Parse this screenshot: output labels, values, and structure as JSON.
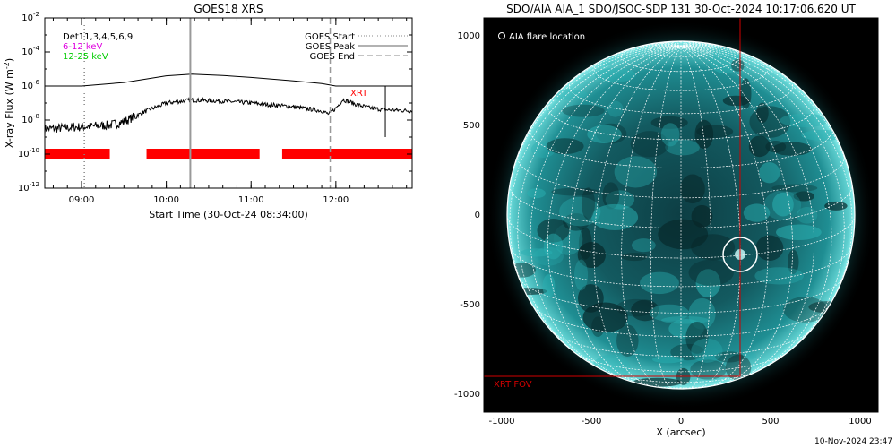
{
  "footer_timestamp": "10-Nov-2024 23:47",
  "chart_data": [
    {
      "type": "line",
      "title": "GOES18 XRS",
      "ylabel": "X-ray Flux (W m^-2)",
      "xlabel": "Start Time (30-Oct-24 08:34:00)",
      "yscale": "log",
      "ylim": [
        1e-12,
        0.01
      ],
      "xlim": [
        "08:34",
        "12:54"
      ],
      "yticks": [
        {
          "exp": -12,
          "label": "10",
          "sup": "-12"
        },
        {
          "exp": -10,
          "label": "10",
          "sup": "-10"
        },
        {
          "exp": -8,
          "label": "10",
          "sup": "-8"
        },
        {
          "exp": -6,
          "label": "10",
          "sup": "-6"
        },
        {
          "exp": -4,
          "label": "10",
          "sup": "-4"
        },
        {
          "exp": -2,
          "label": "10",
          "sup": "-2"
        }
      ],
      "xticks": [
        {
          "t": "09:00",
          "label": "09:00"
        },
        {
          "t": "10:00",
          "label": "10:00"
        },
        {
          "t": "11:00",
          "label": "11:00"
        },
        {
          "t": "12:00",
          "label": "12:00"
        }
      ],
      "det_label": "Det11,3,4,5,6,9",
      "energy_labels": [
        {
          "text": "6-12 keV",
          "color": "#e000e0"
        },
        {
          "text": "12-25 keV",
          "color": "#00cc00"
        }
      ],
      "legend": [
        {
          "text": "GOES Start",
          "style": "dotted"
        },
        {
          "text": "GOES Peak",
          "style": "solid"
        },
        {
          "text": "GOES End",
          "style": "dashed"
        }
      ],
      "series": [
        {
          "name": "",
          "color": "#000000",
          "x": [
            "08:34",
            "09:00",
            "09:30",
            "10:00",
            "10:18",
            "10:40",
            "11:00",
            "11:30",
            "11:50",
            "12:00",
            "12:20",
            "12:54"
          ],
          "values": [
            1e-06,
            1e-06,
            1.6e-06,
            4e-06,
            5e-06,
            4.2e-06,
            3.2e-06,
            2e-06,
            1.4e-06,
            1e-06,
            1e-06,
            1e-06
          ]
        },
        {
          "name": "",
          "color": "#000000",
          "noisy": true,
          "x": [
            "08:34",
            "09:00",
            "09:20",
            "09:30",
            "09:45",
            "10:00",
            "10:18",
            "10:40",
            "11:00",
            "11:30",
            "11:50",
            "11:55",
            "12:00",
            "12:05",
            "12:15",
            "12:25",
            "12:35",
            "12:54"
          ],
          "values": [
            3e-09,
            4e-09,
            5e-09,
            8e-09,
            3.2e-08,
            1e-07,
            1.5e-07,
            1.3e-07,
            1e-07,
            6e-08,
            3.5e-08,
            2.2e-08,
            5e-08,
            1.6e-07,
            8e-08,
            5e-08,
            4e-08,
            3.5e-08
          ]
        }
      ],
      "event_lines": [
        {
          "t": "09:02",
          "style": "dotted",
          "color": "#888888"
        },
        {
          "t": "10:17",
          "style": "solid",
          "color": "#999999"
        },
        {
          "t": "11:56",
          "style": "dashed",
          "color": "#999999"
        }
      ],
      "xrt_label": "XRT",
      "xrt_label_color": "#ff0000",
      "xrt_marker": {
        "t": "12:35",
        "from": 1e-06,
        "to": 1e-09
      },
      "coverage_bars": {
        "color": "#ff0000",
        "level": 1e-10,
        "segments": [
          [
            "08:34",
            "09:20"
          ],
          [
            "09:46",
            "11:06"
          ],
          [
            "11:22",
            "12:54"
          ]
        ]
      }
    },
    {
      "type": "image",
      "title": "SDO/AIA AIA_1 SDO/JSOC-SDP 131 30-Oct-2024 10:17:06.620 UT",
      "xlabel": "X (arcsec)",
      "xlim": [
        -1100,
        1100
      ],
      "ylim": [
        -1100,
        1100
      ],
      "xticks": [
        -1000,
        -500,
        0,
        500,
        1000
      ],
      "yticks": [
        1000,
        500,
        0,
        -500,
        -1000
      ],
      "xtick_labels": [
        "-1000",
        "-500",
        "0",
        "500",
        "1000"
      ],
      "ytick_labels": [
        "1000",
        "500",
        "0",
        "-500",
        "-1000"
      ],
      "legend_label": "AIA flare location",
      "solar_radius": 970,
      "flare_location": {
        "x": 330,
        "y": -220,
        "r": 95
      },
      "xrt_fov": {
        "x0": -1105,
        "x1": 330,
        "y0": -900,
        "y1": 1105
      },
      "xrt_fov_label": "XRT FOV",
      "colors": {
        "disk": "#1a9aa0",
        "fov": "#d00000",
        "grid": "#ffffff"
      }
    }
  ]
}
